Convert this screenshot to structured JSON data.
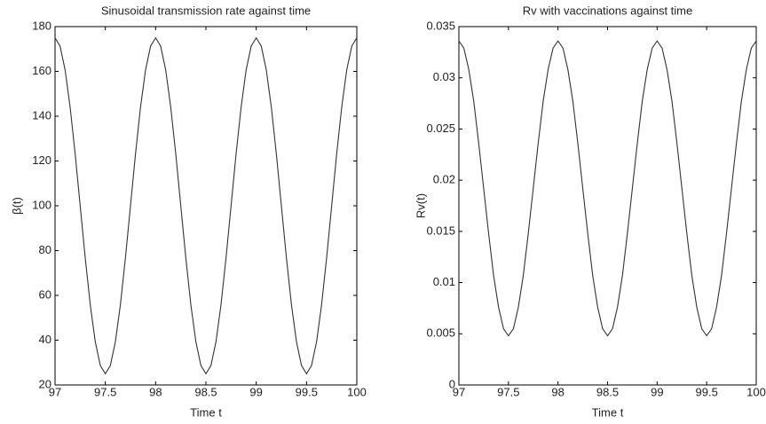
{
  "chart_data": [
    {
      "type": "line",
      "title": "Sinusoidal transmission rate against time",
      "x_label": "Time t",
      "y_label": "β(t)",
      "color": "#333333",
      "x": [
        97,
        97.05,
        97.1,
        97.15,
        97.2,
        97.25,
        97.3,
        97.35,
        97.4,
        97.45,
        97.5,
        97.55,
        97.6,
        97.65,
        97.7,
        97.75,
        97.8,
        97.85,
        97.9,
        97.95,
        98,
        98.05,
        98.1,
        98.15,
        98.2,
        98.25,
        98.3,
        98.35,
        98.4,
        98.45,
        98.5,
        98.55,
        98.6,
        98.65,
        98.7,
        98.75,
        98.8,
        98.85,
        98.9,
        98.95,
        99,
        99.05,
        99.1,
        99.15,
        99.2,
        99.25,
        99.3,
        99.35,
        99.4,
        99.45,
        99.5,
        99.55,
        99.6,
        99.65,
        99.7,
        99.75,
        99.8,
        99.85,
        99.9,
        99.95,
        100
      ],
      "values": [
        175,
        171.3,
        160.7,
        144.1,
        123.2,
        100,
        76.8,
        55.9,
        39.3,
        28.7,
        25,
        28.7,
        39.3,
        55.9,
        76.8,
        100,
        123.2,
        144.1,
        160.7,
        171.3,
        175,
        171.3,
        160.7,
        144.1,
        123.2,
        100,
        76.8,
        55.9,
        39.3,
        28.7,
        25,
        28.7,
        39.3,
        55.9,
        76.8,
        100,
        123.2,
        144.1,
        160.7,
        171.3,
        175,
        171.3,
        160.7,
        144.1,
        123.2,
        100,
        76.8,
        55.9,
        39.3,
        28.7,
        25,
        28.7,
        39.3,
        55.9,
        76.8,
        100,
        123.2,
        144.1,
        160.7,
        171.3,
        175
      ],
      "xlim": [
        97,
        100
      ],
      "xticks": [
        97,
        97.5,
        98,
        98.5,
        99,
        99.5,
        100
      ],
      "ylim": [
        20,
        180
      ],
      "yticks": [
        20,
        40,
        60,
        80,
        100,
        120,
        140,
        160,
        180
      ]
    },
    {
      "type": "line",
      "title": "Rv with vaccinations  against time",
      "x_label": "Time t",
      "y_label": "Rv(t)",
      "color": "#333333",
      "x": [
        97,
        97.05,
        97.1,
        97.15,
        97.2,
        97.25,
        97.3,
        97.35,
        97.4,
        97.45,
        97.5,
        97.55,
        97.6,
        97.65,
        97.7,
        97.75,
        97.8,
        97.85,
        97.9,
        97.95,
        98,
        98.05,
        98.1,
        98.15,
        98.2,
        98.25,
        98.3,
        98.35,
        98.4,
        98.45,
        98.5,
        98.55,
        98.6,
        98.65,
        98.7,
        98.75,
        98.8,
        98.85,
        98.9,
        98.95,
        99,
        99.05,
        99.1,
        99.15,
        99.2,
        99.25,
        99.3,
        99.35,
        99.4,
        99.45,
        99.5,
        99.55,
        99.6,
        99.65,
        99.7,
        99.75,
        99.8,
        99.85,
        99.9,
        99.95,
        100
      ],
      "values": [
        0.0336,
        0.0329,
        0.0308,
        0.0277,
        0.0236,
        0.0192,
        0.0148,
        0.0107,
        0.0076,
        0.0055,
        0.0048,
        0.0055,
        0.0076,
        0.0107,
        0.0148,
        0.0192,
        0.0236,
        0.0277,
        0.0308,
        0.0329,
        0.0336,
        0.0329,
        0.0308,
        0.0277,
        0.0236,
        0.0192,
        0.0148,
        0.0107,
        0.0076,
        0.0055,
        0.0048,
        0.0055,
        0.0076,
        0.0107,
        0.0148,
        0.0192,
        0.0236,
        0.0277,
        0.0308,
        0.0329,
        0.0336,
        0.0329,
        0.0308,
        0.0277,
        0.0236,
        0.0192,
        0.0148,
        0.0107,
        0.0076,
        0.0055,
        0.0048,
        0.0055,
        0.0076,
        0.0107,
        0.0148,
        0.0192,
        0.0236,
        0.0277,
        0.0308,
        0.0329,
        0.0336
      ],
      "xlim": [
        97,
        100
      ],
      "xticks": [
        97,
        97.5,
        98,
        98.5,
        99,
        99.5,
        100
      ],
      "ylim": [
        0,
        0.035
      ],
      "yticks": [
        0,
        0.005,
        0.01,
        0.015,
        0.02,
        0.025,
        0.03,
        0.035
      ]
    }
  ]
}
